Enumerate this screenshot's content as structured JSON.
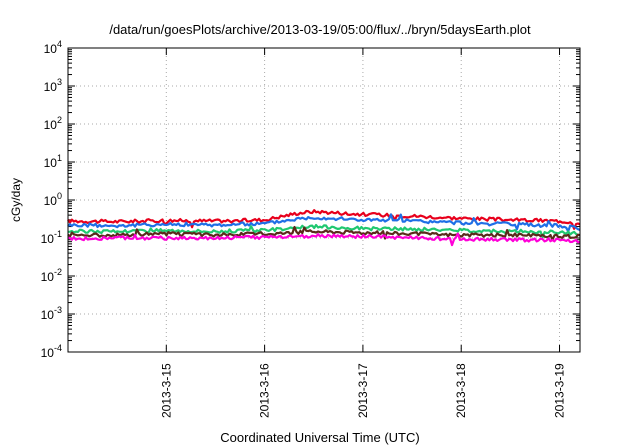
{
  "chart_data": {
    "type": "line",
    "title": "/data/run/goesPlots/archive/2013-03-19/05:00/flux/../bryn/5daysEarth.plot",
    "xlabel": "Coordinated Universal Time (UTC)",
    "ylabel": "cGy/day",
    "y_scale": "log",
    "ylim_exponents": [
      -4,
      4
    ],
    "ytick_exponents": [
      -4,
      -3,
      -2,
      -1,
      0,
      1,
      2,
      3,
      4
    ],
    "ytick_base": "10",
    "x_range_days": [
      "2013-03-14",
      "2013-03-19 05:00"
    ],
    "xticks": [
      "2013-3-15",
      "2013-3-16",
      "2013-3-17",
      "2013-3-18",
      "2013-3-19"
    ],
    "grid": true,
    "series": [
      {
        "color": "#e8001c",
        "x": [
          "03-14 00:00",
          "03-14 12:00",
          "03-15 00:00",
          "03-15 12:00",
          "03-16 00:00",
          "03-16 08:00",
          "03-16 12:00",
          "03-17 00:00",
          "03-17 12:00",
          "03-18 00:00",
          "03-18 12:00",
          "03-19 00:00",
          "03-19 05:00"
        ],
        "values": [
          0.28,
          0.27,
          0.29,
          0.28,
          0.3,
          0.45,
          0.5,
          0.42,
          0.38,
          0.33,
          0.3,
          0.28,
          0.25
        ]
      },
      {
        "color": "#1f6fe6",
        "x": [
          "03-14 00:00",
          "03-14 12:00",
          "03-15 00:00",
          "03-15 12:00",
          "03-16 00:00",
          "03-16 08:00",
          "03-16 12:00",
          "03-17 00:00",
          "03-17 12:00",
          "03-18 00:00",
          "03-18 12:00",
          "03-19 00:00",
          "03-19 05:00"
        ],
        "values": [
          0.22,
          0.21,
          0.23,
          0.22,
          0.24,
          0.32,
          0.35,
          0.3,
          0.28,
          0.25,
          0.23,
          0.21,
          0.18
        ]
      },
      {
        "color": "#20c870",
        "x": [
          "03-14 00:00",
          "03-14 12:00",
          "03-15 00:00",
          "03-15 12:00",
          "03-16 00:00",
          "03-16 08:00",
          "03-16 12:00",
          "03-17 00:00",
          "03-17 12:00",
          "03-18 00:00",
          "03-18 12:00",
          "03-19 00:00",
          "03-19 05:00"
        ],
        "values": [
          0.15,
          0.15,
          0.16,
          0.15,
          0.16,
          0.19,
          0.2,
          0.18,
          0.17,
          0.16,
          0.15,
          0.14,
          0.13
        ]
      },
      {
        "color": "#5a2a1a",
        "x": [
          "03-14 00:00",
          "03-14 12:00",
          "03-15 00:00",
          "03-15 12:00",
          "03-16 00:00",
          "03-16 08:00",
          "03-16 12:00",
          "03-17 00:00",
          "03-17 12:00",
          "03-18 00:00",
          "03-18 12:00",
          "03-19 00:00",
          "03-19 05:00"
        ],
        "values": [
          0.12,
          0.12,
          0.13,
          0.12,
          0.13,
          0.14,
          0.15,
          0.14,
          0.13,
          0.12,
          0.12,
          0.11,
          0.11
        ]
      },
      {
        "color": "#ff00d8",
        "x": [
          "03-14 00:00",
          "03-14 12:00",
          "03-15 00:00",
          "03-15 12:00",
          "03-16 00:00",
          "03-16 08:00",
          "03-16 12:00",
          "03-17 00:00",
          "03-17 12:00",
          "03-18 00:00",
          "03-18 12:00",
          "03-19 00:00",
          "03-19 05:00"
        ],
        "values": [
          0.095,
          0.1,
          0.1,
          0.1,
          0.105,
          0.11,
          0.115,
          0.11,
          0.1,
          0.095,
          0.09,
          0.088,
          0.085
        ]
      }
    ]
  }
}
